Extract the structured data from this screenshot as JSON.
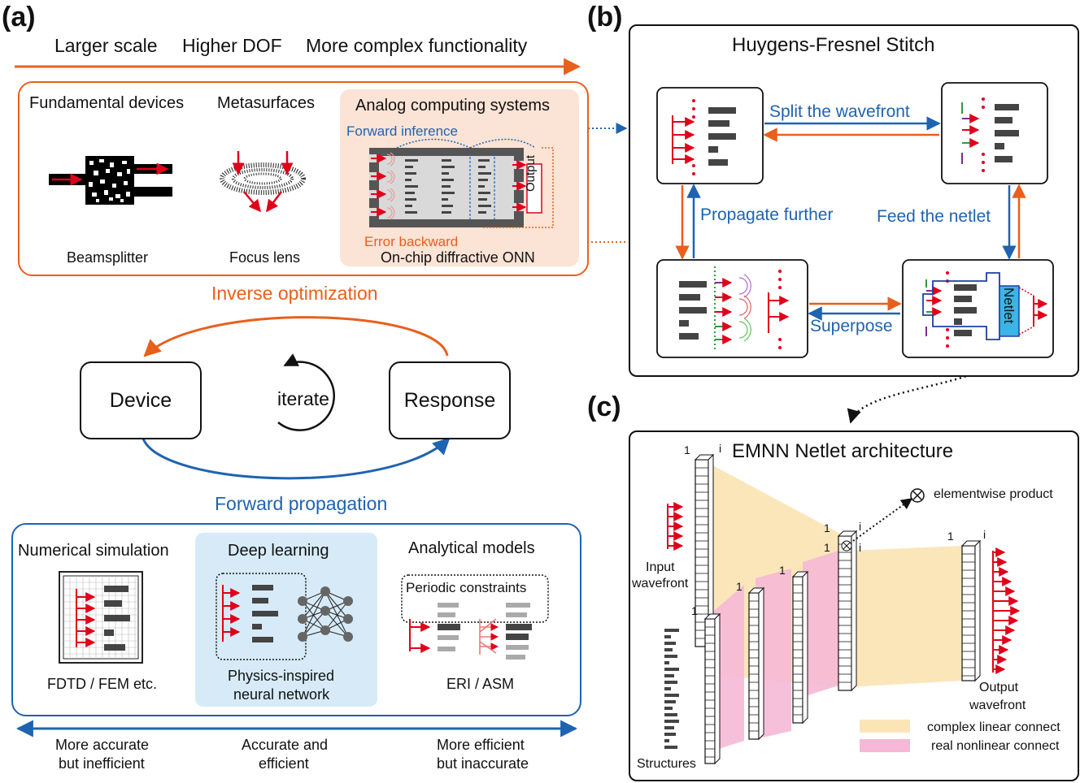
{
  "panel_a": {
    "label": "(a)",
    "trend": [
      "Larger scale",
      "Higher DOF",
      "More complex functionality"
    ],
    "devices": {
      "fundamental_title": "Fundamental devices",
      "fundamental_caption": "Beamsplitter",
      "metasurface_title": "Metasurfaces",
      "metasurface_caption": "Focus lens",
      "analog_title": "Analog computing systems",
      "analog_caption": "On-chip diffractive ONN",
      "forward_inference": "Forward inference",
      "error_backward": "Error backward",
      "output_label": "Output"
    },
    "cycle": {
      "inverse": "Inverse optimization",
      "device": "Device",
      "iterate": "iterate",
      "response": "Response",
      "forward": "Forward propagation"
    },
    "methods": {
      "numerical_title": "Numerical simulation",
      "numerical_caption": "FDTD / FEM etc.",
      "deep_title": "Deep learning",
      "deep_caption_1": "Physics-inspired",
      "deep_caption_2": "neural network",
      "analytical_title": "Analytical models",
      "periodic": "Periodic constraints",
      "analytical_caption": "ERI / ASM"
    },
    "tradeoff": {
      "left_1": "More accurate",
      "left_2": "but inefficient",
      "mid_1": "Accurate and",
      "mid_2": "efficient",
      "right_1": "More efficient",
      "right_2": "but inaccurate"
    }
  },
  "panel_b": {
    "label": "(b)",
    "title": "Huygens-Fresnel Stitch",
    "split": "Split the wavefront",
    "propagate": "Propagate further",
    "feed": "Feed the netlet",
    "superpose": "Superpose",
    "netlet": "Netlet"
  },
  "panel_c": {
    "label": "(c)",
    "title": "EMNN Netlet architecture",
    "elementwise": "elementwise product",
    "input_1": "Input",
    "input_2": "wavefront",
    "output_1": "Output",
    "output_2": "wavefront",
    "structures": "Structures",
    "legend_linear": "complex linear connect",
    "legend_nonlinear": "real nonlinear connect",
    "idx_1": "1",
    "idx_i": "i"
  },
  "colors": {
    "orange": "#e8601c",
    "blue": "#1f63b0",
    "red": "#e0001a",
    "peach": "#fbe3d6",
    "lightblue": "#d6ebf7",
    "yellow": "#fbe5b6",
    "pink": "#f5b8d6",
    "cyan": "#3cb4e6"
  }
}
